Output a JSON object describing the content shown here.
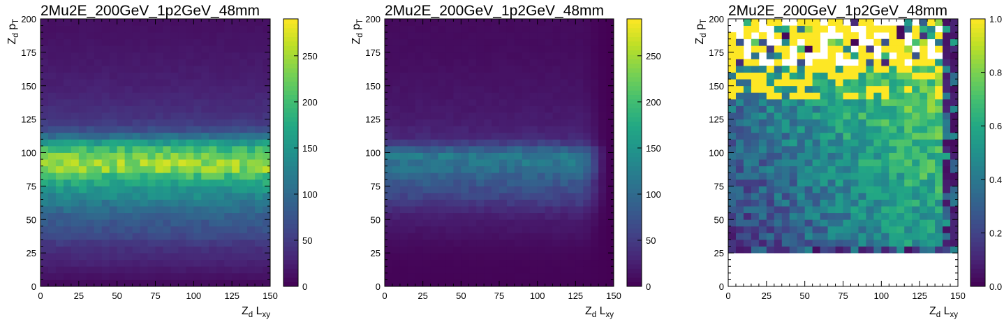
{
  "figure": {
    "panel_count": 3
  },
  "chart_data": [
    {
      "type": "heatmap",
      "title": "2Mu2E_200GeV_1p2GeV_48mm",
      "xlabel": {
        "main": "Z",
        "sub": "d",
        "rest": " L",
        "rest_sub": "xy"
      },
      "ylabel": {
        "main": "Z",
        "sub": "d",
        "rest": " p",
        "rest_sub": "T"
      },
      "x_range": [
        0,
        150
      ],
      "y_range": [
        0,
        200
      ],
      "x_ticks": [
        "0",
        "25",
        "50",
        "75",
        "100",
        "125",
        "150"
      ],
      "y_ticks": [
        "0",
        "25",
        "50",
        "75",
        "100",
        "125",
        "150",
        "175",
        "200"
      ],
      "nx": 30,
      "ny": 40,
      "colorbar": {
        "range": [
          0,
          290
        ],
        "ticks": [
          "0",
          "50",
          "100",
          "150",
          "200",
          "250"
        ],
        "tick_values": [
          0,
          50,
          100,
          150,
          200,
          250
        ],
        "colormap": "viridis"
      },
      "y_bin_profile": [
        [
          0,
          5
        ],
        [
          20,
          30
        ],
        [
          25,
          38
        ],
        [
          30,
          40
        ],
        [
          35,
          58
        ],
        [
          40,
          68
        ],
        [
          45,
          75
        ],
        [
          50,
          82
        ],
        [
          55,
          98
        ],
        [
          60,
          108
        ],
        [
          65,
          125
        ],
        [
          70,
          145
        ],
        [
          75,
          160
        ],
        [
          80,
          178
        ],
        [
          85,
          220
        ],
        [
          90,
          250
        ],
        [
          95,
          235
        ],
        [
          100,
          212
        ],
        [
          105,
          185
        ],
        [
          110,
          130
        ],
        [
          115,
          80
        ],
        [
          120,
          55
        ],
        [
          125,
          45
        ],
        [
          130,
          40
        ],
        [
          135,
          36
        ],
        [
          140,
          32
        ],
        [
          150,
          26
        ],
        [
          160,
          22
        ],
        [
          175,
          18
        ],
        [
          190,
          14
        ],
        [
          200,
          12
        ]
      ],
      "x_falloff": {
        "start": 150,
        "end": 150,
        "floor": 1.0
      },
      "noise": 0.12,
      "seed": 11
    },
    {
      "type": "heatmap",
      "title": "2Mu2E_200GeV_1p2GeV_48mm",
      "xlabel": {
        "main": "Z",
        "sub": "d",
        "rest": " L",
        "rest_sub": "xy"
      },
      "ylabel": {
        "main": "Z",
        "sub": "d",
        "rest": " p",
        "rest_sub": "T"
      },
      "x_range": [
        0,
        150
      ],
      "y_range": [
        0,
        200
      ],
      "x_ticks": [
        "0",
        "25",
        "50",
        "75",
        "100",
        "125",
        "150"
      ],
      "y_ticks": [
        "0",
        "25",
        "50",
        "75",
        "100",
        "125",
        "150",
        "175",
        "200"
      ],
      "nx": 30,
      "ny": 40,
      "colorbar": {
        "range": [
          0,
          290
        ],
        "ticks": [
          "0",
          "50",
          "100",
          "150",
          "200",
          "250"
        ],
        "tick_values": [
          0,
          50,
          100,
          150,
          200,
          250
        ],
        "colormap": "viridis"
      },
      "y_bin_profile": [
        [
          0,
          2
        ],
        [
          20,
          4
        ],
        [
          30,
          8
        ],
        [
          40,
          15
        ],
        [
          50,
          22
        ],
        [
          55,
          30
        ],
        [
          60,
          40
        ],
        [
          65,
          55
        ],
        [
          70,
          65
        ],
        [
          75,
          75
        ],
        [
          80,
          85
        ],
        [
          85,
          100
        ],
        [
          90,
          110
        ],
        [
          95,
          120
        ],
        [
          100,
          112
        ],
        [
          105,
          70
        ],
        [
          110,
          35
        ],
        [
          120,
          25
        ],
        [
          130,
          20
        ],
        [
          150,
          15
        ],
        [
          175,
          10
        ],
        [
          200,
          8
        ]
      ],
      "x_falloff": {
        "start": 130,
        "end": 145,
        "floor": 0.02
      },
      "noise": 0.15,
      "seed": 29
    },
    {
      "type": "heatmap",
      "title": "2Mu2E_200GeV_1p2GeV_48mm",
      "xlabel": {
        "main": "Z",
        "sub": "d",
        "rest": " L",
        "rest_sub": "xy"
      },
      "ylabel": {
        "main": "Z",
        "sub": "d",
        "rest": " p",
        "rest_sub": "T"
      },
      "x_range": [
        0,
        150
      ],
      "y_range": [
        0,
        200
      ],
      "x_ticks": [
        "0",
        "25",
        "50",
        "75",
        "100",
        "125",
        "150"
      ],
      "y_ticks": [
        "0",
        "25",
        "50",
        "75",
        "100",
        "125",
        "150",
        "175",
        "200"
      ],
      "nx": 30,
      "ny": 40,
      "colorbar": {
        "range": [
          0,
          1.0
        ],
        "ticks": [
          "0.0",
          "0.2",
          "0.4",
          "0.6",
          "0.8",
          "1.0"
        ],
        "tick_values": [
          0,
          0.2,
          0.4,
          0.6,
          0.8,
          1.0
        ],
        "colormap": "viridis"
      },
      "ratio_map": true,
      "empty_below_y": 25,
      "sparse_above_y": 165,
      "seed": 53
    }
  ]
}
